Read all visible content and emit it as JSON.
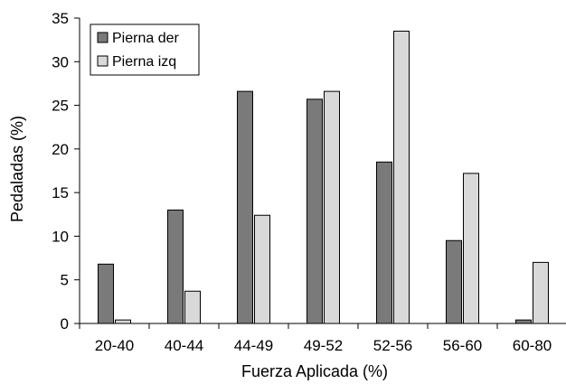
{
  "chart_data": {
    "type": "bar",
    "categories": [
      "20-40",
      "40-44",
      "44-49",
      "49-52",
      "52-56",
      "56-60",
      "60-80"
    ],
    "series": [
      {
        "name": "Pierna der",
        "color": "#7a7a7a",
        "values": [
          6.8,
          13.0,
          26.6,
          25.7,
          18.5,
          9.5,
          0.4
        ]
      },
      {
        "name": "Pierna izq",
        "color": "#d9d9d9",
        "values": [
          0.4,
          3.7,
          12.4,
          26.6,
          33.5,
          17.2,
          7.0
        ]
      }
    ],
    "xlabel": "Fuerza Aplicada (%)",
    "ylabel": "Pedaladas (%)",
    "ylim": [
      0,
      35
    ],
    "yticks": [
      "0",
      "5",
      "10",
      "15",
      "20",
      "25",
      "30",
      "35"
    ],
    "grid": false,
    "legend_position": "top-left"
  }
}
